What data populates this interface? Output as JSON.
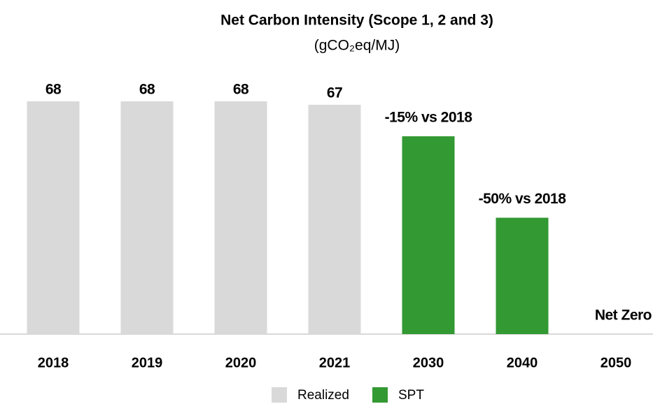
{
  "chart_data": {
    "type": "bar",
    "title": "Net Carbon Intensity (Scope 1, 2 and 3)",
    "subtitle": "(gCO₂eq/MJ)",
    "categories": [
      "2018",
      "2019",
      "2020",
      "2021",
      "2030",
      "2040",
      "2050"
    ],
    "series": [
      {
        "name": "Realized",
        "color": "#d9d9d9",
        "values": [
          68,
          68,
          68,
          67,
          null,
          null,
          null
        ]
      },
      {
        "name": "SPT",
        "color": "#339933",
        "values": [
          null,
          null,
          null,
          null,
          57.8,
          34,
          0
        ],
        "value_labels": [
          null,
          null,
          null,
          null,
          "-15% vs 2018",
          "-50% vs 2018",
          "Net Zero"
        ]
      }
    ]
  }
}
